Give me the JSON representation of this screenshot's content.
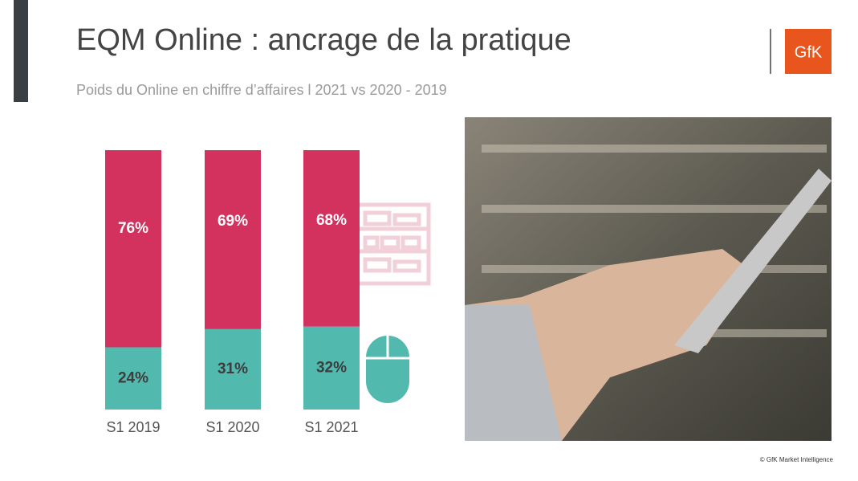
{
  "title": "EQM Online : ancrage de la pratique",
  "subtitle": "Poids du Online en chiffre d’affaires l 2021 vs 2020 - 2019",
  "logo": "GfK",
  "footer": "© GfK Market Intelligence",
  "chart_data": {
    "type": "stacked_bar",
    "categories": [
      "S1 2019",
      "S1 2020",
      "S1 2021"
    ],
    "ylim": [
      0,
      100
    ],
    "series": [
      {
        "color": "#52b9af",
        "values": [
          24,
          31,
          32
        ],
        "value_labels": [
          "24%",
          "31%",
          "32%"
        ],
        "label_color": "#3d3d3d"
      },
      {
        "color": "#d3325f",
        "values": [
          76,
          69,
          68
        ],
        "value_labels": [
          "76%",
          "69%",
          "68%"
        ],
        "label_color": "#ffffff"
      }
    ]
  }
}
